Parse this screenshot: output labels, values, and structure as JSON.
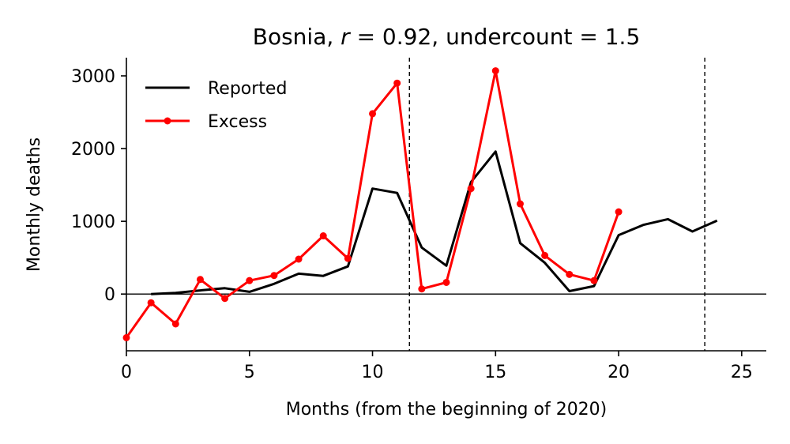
{
  "chart_data": {
    "type": "line",
    "title": {
      "prefix": "Bosnia, ",
      "r_symbol": "r",
      "r_value": " = 0.92, undercount = 1.5"
    },
    "xlabel": "Months (from the beginning of 2020)",
    "ylabel": "Monthly deaths",
    "xlim": [
      0,
      26
    ],
    "ylim": [
      -780,
      3250
    ],
    "xticks": [
      0,
      5,
      10,
      15,
      20,
      25
    ],
    "yticks": [
      0,
      1000,
      2000,
      3000
    ],
    "zero_line": true,
    "vertical_lines": [
      11.5,
      23.5
    ],
    "legend_position": "top-left",
    "series": [
      {
        "name": "Reported",
        "color": "#000000",
        "marker": false,
        "x": [
          1,
          2,
          3,
          4,
          5,
          6,
          7,
          8,
          9,
          10,
          11,
          12,
          13,
          14,
          15,
          16,
          17,
          18,
          19,
          20,
          21,
          22,
          23,
          24
        ],
        "y": [
          0,
          15,
          50,
          80,
          30,
          140,
          280,
          250,
          380,
          1450,
          1390,
          640,
          390,
          1540,
          1960,
          700,
          430,
          40,
          110,
          810,
          950,
          1030,
          860,
          1010
        ]
      },
      {
        "name": "Excess",
        "color": "#ff0000",
        "marker": true,
        "x": [
          0,
          1,
          2,
          3,
          4,
          5,
          6,
          7,
          8,
          9,
          10,
          11,
          12,
          13,
          14,
          15,
          16,
          17,
          18,
          19,
          20
        ],
        "y": [
          -600,
          -120,
          -410,
          200,
          -60,
          185,
          255,
          480,
          800,
          490,
          2480,
          2900,
          70,
          160,
          1450,
          3070,
          1240,
          530,
          270,
          185,
          1130
        ]
      }
    ]
  }
}
